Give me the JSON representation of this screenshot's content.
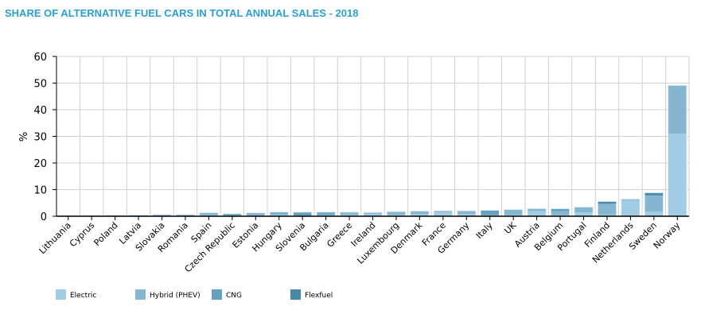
{
  "chart_data": {
    "type": "bar",
    "stacked": true,
    "title": "SHARE OF ALTERNATIVE FUEL CARS IN TOTAL ANNUAL SALES - 2018",
    "xlabel": "",
    "ylabel": "%",
    "ylim": [
      0,
      60
    ],
    "yticks": [
      0,
      10,
      20,
      30,
      40,
      50,
      60
    ],
    "grid": true,
    "legend_position": "bottom",
    "categories": [
      "Lithuania",
      "Cyprus",
      "Poland",
      "Latvia",
      "Slovakia",
      "Romania",
      "Spain",
      "Czech Republic",
      "Estonia",
      "Hungary",
      "Slovenia",
      "Bulgaria",
      "Greece",
      "Ireland",
      "Luxembourg",
      "Denmark",
      "France",
      "Germany",
      "Italy",
      "UK",
      "Austria",
      "Belgium",
      "Portugal",
      "Finland",
      "Netherlands",
      "Sweden",
      "Norway"
    ],
    "series": [
      {
        "name": "Electric",
        "color": "#a1cce3",
        "values": [
          0.05,
          0.05,
          0.1,
          0.2,
          0.2,
          0.3,
          0.4,
          0.2,
          0.3,
          0.6,
          0.2,
          0.3,
          0.5,
          0.9,
          0.6,
          0.8,
          1.5,
          0.9,
          0.2,
          0.5,
          2.0,
          0.4,
          1.5,
          0.6,
          5.9,
          1.8,
          31.0
        ]
      },
      {
        "name": "Hybrid (PHEV)",
        "color": "#86b6cf",
        "values": [
          0.05,
          0.05,
          0.1,
          0.1,
          0.3,
          0.2,
          0.7,
          0.1,
          0.6,
          0.4,
          0.1,
          0.4,
          0.8,
          0.4,
          1.0,
          1.0,
          0.4,
          1.0,
          0.3,
          1.9,
          0.6,
          1.5,
          1.8,
          4.1,
          0.4,
          6.0,
          18.0
        ]
      },
      {
        "name": "CNG",
        "color": "#65a0bf",
        "values": [
          0,
          0,
          0,
          0,
          0,
          0,
          0.1,
          0.5,
          0.2,
          0.4,
          1.1,
          0.7,
          0.1,
          0,
          0,
          0,
          0,
          0,
          1.6,
          0,
          0.1,
          0.8,
          0,
          0,
          0,
          0,
          0
        ]
      },
      {
        "name": "Flexfuel",
        "color": "#4a88aa",
        "values": [
          0,
          0,
          0,
          0,
          0,
          0,
          0,
          0,
          0,
          0,
          0,
          0,
          0,
          0,
          0,
          0,
          0,
          0,
          0,
          0,
          0,
          0,
          0,
          0.7,
          0,
          0.9,
          0
        ]
      }
    ]
  }
}
